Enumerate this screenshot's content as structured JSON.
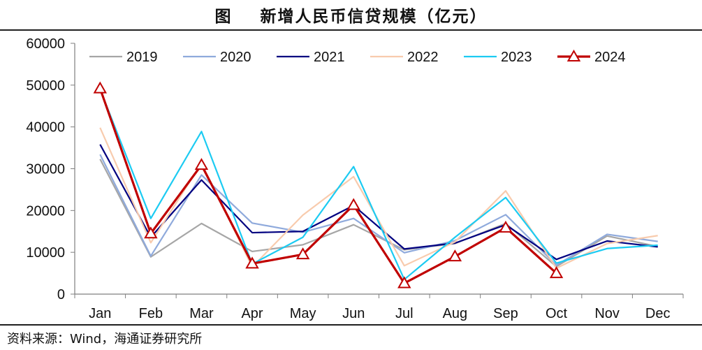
{
  "header": {
    "title": "图    新增人民币信贷规模（亿元）"
  },
  "footer": {
    "source": "资料来源：Wind，海通证券研究所"
  },
  "chart_data": {
    "type": "line",
    "title": "新增人民币信贷规模（亿元）",
    "xlabel": "",
    "ylabel": "",
    "categories": [
      "Jan",
      "Feb",
      "Mar",
      "Apr",
      "May",
      "Jun",
      "Jul",
      "Aug",
      "Sep",
      "Oct",
      "Nov",
      "Dec"
    ],
    "ylim": [
      0,
      60000
    ],
    "yticks": [
      0,
      10000,
      20000,
      30000,
      40000,
      50000,
      60000
    ],
    "grid": false,
    "legend_position": "top",
    "series": [
      {
        "name": "2019",
        "color": "#a6a6a6",
        "marker": "none",
        "values": [
          32300,
          8900,
          16900,
          10200,
          11800,
          16600,
          10600,
          12100,
          16900,
          6600,
          13900,
          11400
        ]
      },
      {
        "name": "2020",
        "color": "#8faadc",
        "marker": "none",
        "values": [
          33400,
          9100,
          28500,
          17000,
          14800,
          18100,
          9900,
          12800,
          19000,
          6900,
          14300,
          12600
        ]
      },
      {
        "name": "2021",
        "color": "#000080",
        "marker": "none",
        "values": [
          35800,
          13600,
          27300,
          14700,
          15000,
          21200,
          10800,
          12200,
          16600,
          8300,
          12700,
          11300
        ]
      },
      {
        "name": "2022",
        "color": "#f8cbad",
        "marker": "none",
        "values": [
          39800,
          12300,
          31300,
          6500,
          18900,
          28100,
          6800,
          12500,
          24700,
          6200,
          12100,
          14000
        ]
      },
      {
        "name": "2023",
        "color": "#1ccbf2",
        "marker": "none",
        "values": [
          49000,
          18100,
          38900,
          7200,
          13600,
          30500,
          3500,
          13600,
          23100,
          7400,
          10900,
          11700
        ]
      },
      {
        "name": "2024",
        "color": "#c00000",
        "marker": "triangle",
        "values": [
          49200,
          14500,
          30900,
          7300,
          9500,
          21300,
          2600,
          9000,
          15900,
          5000,
          null,
          null
        ]
      }
    ]
  }
}
